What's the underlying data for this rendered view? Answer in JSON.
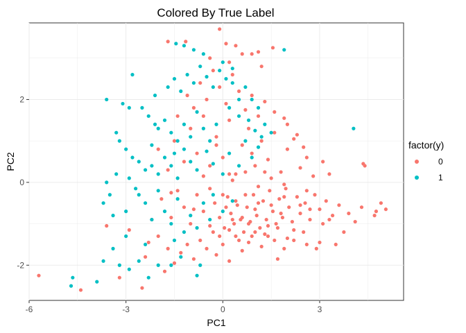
{
  "chart_data": {
    "type": "scatter",
    "title": "Colored By True Label",
    "xlabel": "PC1",
    "ylabel": "PC2",
    "xlim": [
      -6,
      5.6
    ],
    "ylim": [
      -2.85,
      3.85
    ],
    "xticks": [
      -6,
      -3,
      0,
      3
    ],
    "xtick_labels": [
      "-6",
      "-3",
      "0",
      "3"
    ],
    "yticks": [
      -2,
      0,
      2
    ],
    "ytick_labels": [
      "-2",
      "0",
      "2"
    ],
    "grid": true,
    "legend": {
      "title": "factor(y)",
      "position": "right"
    },
    "series": [
      {
        "name": "0",
        "color": "#F8766D",
        "points": [
          [
            -5.7,
            -2.25
          ],
          [
            -4.4,
            -2.6
          ],
          [
            -3.6,
            -1.05
          ],
          [
            -3.2,
            -2.3
          ],
          [
            -2.9,
            -1.15
          ],
          [
            -2.5,
            -2.55
          ],
          [
            -2.4,
            -1.8
          ],
          [
            -2.3,
            -1.45
          ],
          [
            -2.0,
            -1.3
          ],
          [
            -1.8,
            -2.15
          ],
          [
            -1.7,
            -1.6
          ],
          [
            -1.5,
            -1.95
          ],
          [
            -1.3,
            -1.7
          ],
          [
            -1.1,
            -1.5
          ],
          [
            -0.9,
            -1.85
          ],
          [
            -0.7,
            -1.4
          ],
          [
            -0.5,
            -1.6
          ],
          [
            -0.3,
            -1.2
          ],
          [
            -0.2,
            -1.75
          ],
          [
            0.0,
            -1.5
          ],
          [
            0.2,
            -1.9
          ],
          [
            0.4,
            -1.3
          ],
          [
            0.6,
            -1.65
          ],
          [
            0.8,
            -1.45
          ],
          [
            1.0,
            -1.2
          ],
          [
            1.2,
            -1.55
          ],
          [
            1.4,
            -1.3
          ],
          [
            1.7,
            -1.85
          ],
          [
            1.9,
            -1.6
          ],
          [
            2.2,
            -1.4
          ],
          [
            2.5,
            -1.2
          ],
          [
            2.6,
            -1.5
          ],
          [
            -2.2,
            -0.9
          ],
          [
            -1.9,
            -0.4
          ],
          [
            -1.6,
            -0.85
          ],
          [
            -1.4,
            -0.2
          ],
          [
            -1.2,
            -0.6
          ],
          [
            -1.0,
            -1.0
          ],
          [
            -0.8,
            -0.3
          ],
          [
            -0.6,
            -0.7
          ],
          [
            -0.4,
            -1.05
          ],
          [
            -0.25,
            -0.5
          ],
          [
            -0.1,
            -0.85
          ],
          [
            0.05,
            -1.1
          ],
          [
            0.15,
            -0.35
          ],
          [
            0.25,
            -0.75
          ],
          [
            0.35,
            -1.0
          ],
          [
            0.45,
            -0.55
          ],
          [
            0.55,
            -0.9
          ],
          [
            0.65,
            -1.2
          ],
          [
            0.75,
            -0.6
          ],
          [
            0.85,
            -0.95
          ],
          [
            0.95,
            -0.3
          ],
          [
            1.05,
            -0.8
          ],
          [
            1.15,
            -1.1
          ],
          [
            1.25,
            -0.45
          ],
          [
            1.35,
            -0.9
          ],
          [
            1.45,
            -0.2
          ],
          [
            1.55,
            -0.7
          ],
          [
            1.65,
            -1.0
          ],
          [
            1.75,
            -0.4
          ],
          [
            1.85,
            -0.85
          ],
          [
            1.95,
            -0.15
          ],
          [
            2.05,
            -0.6
          ],
          [
            2.15,
            -0.95
          ],
          [
            2.3,
            -0.35
          ],
          [
            2.4,
            -0.75
          ],
          [
            2.55,
            -0.5
          ],
          [
            2.7,
            -0.9
          ],
          [
            2.85,
            -0.3
          ],
          [
            3.0,
            -0.65
          ],
          [
            3.1,
            -1.0
          ],
          [
            3.2,
            -0.45
          ],
          [
            3.4,
            -0.8
          ],
          [
            3.6,
            -0.55
          ],
          [
            3.75,
            -1.2
          ],
          [
            3.9,
            -0.75
          ],
          [
            4.1,
            -0.95
          ],
          [
            4.3,
            -0.6
          ],
          [
            4.7,
            -0.8
          ],
          [
            4.75,
            -0.7
          ],
          [
            4.9,
            -0.5
          ],
          [
            5.05,
            -0.65
          ],
          [
            3.5,
            -1.5
          ],
          [
            3.0,
            -1.45
          ],
          [
            2.9,
            -1.6
          ],
          [
            0.1,
            -0.6
          ],
          [
            0.3,
            -0.9
          ],
          [
            0.5,
            -1.4
          ],
          [
            0.7,
            -0.3
          ],
          [
            0.9,
            -1.3
          ],
          [
            1.1,
            -0.5
          ],
          [
            1.3,
            -1.25
          ],
          [
            1.5,
            -0.55
          ],
          [
            1.7,
            -1.1
          ],
          [
            1.9,
            -0.35
          ],
          [
            0.2,
            -1.15
          ],
          [
            0.6,
            -0.85
          ],
          [
            1.0,
            -0.65
          ],
          [
            1.4,
            -1.05
          ],
          [
            1.8,
            -0.75
          ],
          [
            2.2,
            -1.15
          ],
          [
            2.6,
            -0.2
          ],
          [
            -0.1,
            -1.3
          ],
          [
            -2.0,
            0.8
          ],
          [
            -1.7,
            0.3
          ],
          [
            -1.5,
            1.0
          ],
          [
            -1.2,
            0.5
          ],
          [
            -1.0,
            1.3
          ],
          [
            -0.8,
            0.7
          ],
          [
            -0.6,
            1.6
          ],
          [
            -0.4,
            0.4
          ],
          [
            -0.2,
            1.1
          ],
          [
            0.0,
            0.6
          ],
          [
            0.2,
            1.5
          ],
          [
            0.4,
            0.2
          ],
          [
            0.6,
            0.9
          ],
          [
            0.8,
            1.3
          ],
          [
            1.0,
            0.4
          ],
          [
            1.2,
            1.0
          ],
          [
            1.4,
            0.55
          ],
          [
            1.6,
            1.2
          ],
          [
            1.8,
            0.25
          ],
          [
            2.0,
            0.8
          ],
          [
            2.2,
            1.05
          ],
          [
            2.4,
            0.35
          ],
          [
            2.6,
            0.6
          ],
          [
            2.8,
            0.15
          ],
          [
            3.1,
            0.5
          ],
          [
            3.3,
            0.2
          ],
          [
            4.35,
            0.45
          ],
          [
            4.4,
            0.4
          ],
          [
            -1.4,
            1.6
          ],
          [
            -1.1,
            2.1
          ],
          [
            -0.9,
            1.8
          ],
          [
            -0.7,
            2.4
          ],
          [
            -0.5,
            2.0
          ],
          [
            -0.3,
            2.7
          ],
          [
            -0.1,
            2.3
          ],
          [
            0.1,
            1.9
          ],
          [
            0.3,
            2.6
          ],
          [
            0.5,
            2.2
          ],
          [
            0.7,
            1.75
          ],
          [
            0.9,
            2.1
          ],
          [
            1.1,
            1.6
          ],
          [
            1.3,
            1.95
          ],
          [
            1.6,
            1.7
          ],
          [
            1.9,
            1.55
          ],
          [
            2.0,
            1.4
          ],
          [
            2.3,
            1.15
          ],
          [
            -0.1,
            3.7
          ],
          [
            -1.7,
            3.4
          ],
          [
            -1.15,
            3.4
          ],
          [
            0.1,
            3.35
          ],
          [
            0.4,
            3.3
          ],
          [
            0.6,
            3.1
          ],
          [
            0.9,
            3.1
          ],
          [
            1.1,
            3.15
          ],
          [
            1.55,
            3.25
          ],
          [
            1.2,
            2.8
          ],
          [
            -0.4,
            3.0
          ],
          [
            0.2,
            2.9
          ],
          [
            -0.2,
            0.9
          ],
          [
            0.3,
            0.05
          ],
          [
            0.7,
            0.25
          ],
          [
            1.1,
            -0.1
          ],
          [
            1.5,
            0.1
          ],
          [
            1.9,
            -0.05
          ],
          [
            -0.4,
            -0.15
          ],
          [
            -0.6,
            0.15
          ],
          [
            0.0,
            -0.3
          ],
          [
            0.4,
            -0.45
          ],
          [
            2.7,
            -0.65
          ],
          [
            3.3,
            -0.9
          ],
          [
            2.0,
            -1.35
          ],
          [
            0.8,
            -1.0
          ],
          [
            1.6,
            -1.4
          ],
          [
            2.4,
            -0.55
          ],
          [
            -0.9,
            -0.65
          ],
          [
            -1.6,
            -0.25
          ],
          [
            0.2,
            0.2
          ],
          [
            1.3,
            0.25
          ],
          [
            2.5,
            0.85
          ],
          [
            0.9,
            0.7
          ]
        ]
      },
      {
        "name": "1",
        "color": "#00BFC4",
        "points": [
          [
            -4.7,
            -2.5
          ],
          [
            -4.65,
            -2.3
          ],
          [
            -3.9,
            -2.4
          ],
          [
            -3.7,
            -1.9
          ],
          [
            -3.2,
            -2.0
          ],
          [
            -2.9,
            -2.1
          ],
          [
            -2.6,
            -1.9
          ],
          [
            -3.4,
            -1.6
          ],
          [
            -3.0,
            -1.3
          ],
          [
            -2.4,
            -1.5
          ],
          [
            -2.3,
            -2.3
          ],
          [
            -2.0,
            -2.0
          ],
          [
            -1.6,
            -2.0
          ],
          [
            -1.3,
            -1.8
          ],
          [
            -0.8,
            -2.25
          ],
          [
            -0.7,
            -2.0
          ],
          [
            -3.7,
            -0.5
          ],
          [
            -3.5,
            -0.3
          ],
          [
            -3.4,
            -0.8
          ],
          [
            -3.3,
            0.2
          ],
          [
            -3.6,
            0.0
          ],
          [
            -2.9,
            0.1
          ],
          [
            -2.6,
            -0.3
          ],
          [
            -2.4,
            -0.5
          ],
          [
            -2.2,
            -0.9
          ],
          [
            -2.0,
            -0.2
          ],
          [
            -1.8,
            -0.7
          ],
          [
            -1.6,
            -1.0
          ],
          [
            -1.4,
            -0.4
          ],
          [
            -1.2,
            -1.2
          ],
          [
            -1.0,
            -0.8
          ],
          [
            -0.8,
            -1.1
          ],
          [
            -0.6,
            -0.5
          ],
          [
            -0.4,
            -0.9
          ],
          [
            -3.3,
            1.2
          ],
          [
            -3.2,
            1.0
          ],
          [
            -3.0,
            0.8
          ],
          [
            -2.8,
            0.6
          ],
          [
            -2.6,
            0.5
          ],
          [
            -2.4,
            0.3
          ],
          [
            -2.2,
            0.4
          ],
          [
            -2.0,
            0.2
          ],
          [
            -1.8,
            0.6
          ],
          [
            -1.6,
            0.4
          ],
          [
            -1.4,
            0.1
          ],
          [
            -1.2,
            0.8
          ],
          [
            -1.0,
            0.5
          ],
          [
            -0.8,
            0.3
          ],
          [
            -3.6,
            2.0
          ],
          [
            -3.1,
            1.9
          ],
          [
            -2.9,
            1.8
          ],
          [
            -2.5,
            1.8
          ],
          [
            -2.3,
            1.6
          ],
          [
            -2.1,
            1.4
          ],
          [
            -2.0,
            1.3
          ],
          [
            -1.8,
            1.5
          ],
          [
            -1.6,
            1.2
          ],
          [
            -1.4,
            1.0
          ],
          [
            -1.2,
            1.4
          ],
          [
            -1.0,
            1.1
          ],
          [
            -0.8,
            1.7
          ],
          [
            -0.6,
            1.3
          ],
          [
            -0.4,
            1.0
          ],
          [
            -0.2,
            1.4
          ],
          [
            -2.8,
            2.6
          ],
          [
            -2.1,
            2.1
          ],
          [
            -1.7,
            2.3
          ],
          [
            -1.5,
            2.5
          ],
          [
            -1.3,
            2.2
          ],
          [
            -1.1,
            2.6
          ],
          [
            -0.9,
            2.4
          ],
          [
            -0.7,
            2.8
          ],
          [
            -0.5,
            2.55
          ],
          [
            -0.3,
            2.3
          ],
          [
            -0.1,
            2.7
          ],
          [
            0.1,
            2.5
          ],
          [
            0.3,
            2.4
          ],
          [
            0.5,
            2.0
          ],
          [
            0.7,
            2.3
          ],
          [
            0.9,
            2.0
          ],
          [
            1.1,
            1.8
          ],
          [
            1.3,
            1.4
          ],
          [
            1.5,
            1.2
          ],
          [
            0.2,
            1.8
          ],
          [
            0.5,
            1.6
          ],
          [
            0.8,
            1.5
          ],
          [
            1.0,
            1.25
          ],
          [
            1.2,
            1.1
          ],
          [
            -1.45,
            3.35
          ],
          [
            -1.2,
            3.3
          ],
          [
            -0.9,
            3.2
          ],
          [
            -0.6,
            3.1
          ],
          [
            0.0,
            2.9
          ],
          [
            0.3,
            2.75
          ],
          [
            1.9,
            3.2
          ],
          [
            4.05,
            1.3
          ],
          [
            0.0,
            0.2
          ],
          [
            0.2,
            0.7
          ],
          [
            0.5,
            0.4
          ],
          [
            0.7,
            1.0
          ],
          [
            0.9,
            0.6
          ],
          [
            1.1,
            0.85
          ],
          [
            -0.3,
            0.45
          ],
          [
            -0.5,
            0.75
          ],
          [
            -0.3,
            -0.3
          ],
          [
            0.0,
            -0.7
          ],
          [
            0.3,
            -0.45
          ],
          [
            -1.5,
            -1.4
          ],
          [
            -2.7,
            -0.15
          ],
          [
            -3.0,
            -0.7
          ],
          [
            -2.2,
            0.9
          ],
          [
            -1.5,
            0.7
          ]
        ]
      }
    ]
  }
}
